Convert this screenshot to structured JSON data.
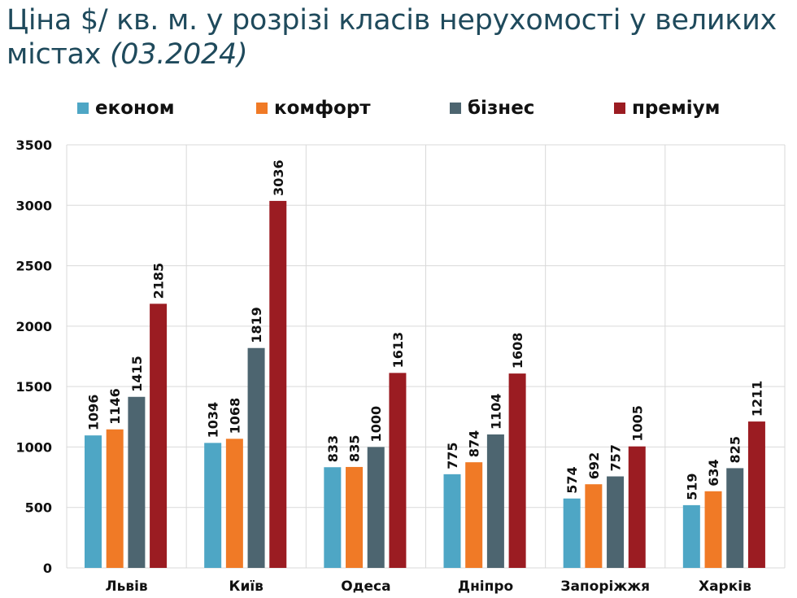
{
  "title": {
    "main": "Ціна $/ кв. м. у розрізі класів нерухомості у великих містах",
    "date": "(03.2024)"
  },
  "chart_data": {
    "type": "bar",
    "title": "Ціна $/ кв. м. у розрізі класів нерухомості у великих містах (03.2024)",
    "xlabel": "",
    "ylabel": "",
    "categories": [
      "Львів",
      "Київ",
      "Одеса",
      "Дніпро",
      "Запоріжжя",
      "Харків"
    ],
    "series": [
      {
        "name": "економ",
        "color": "#4ea6c5",
        "values": [
          1096,
          1034,
          833,
          775,
          574,
          519
        ]
      },
      {
        "name": "комфорт",
        "color": "#f07a26",
        "values": [
          1146,
          1068,
          835,
          874,
          692,
          634
        ]
      },
      {
        "name": "бізнес",
        "color": "#4d6570",
        "values": [
          1415,
          1819,
          1000,
          1104,
          757,
          825
        ]
      },
      {
        "name": "преміум",
        "color": "#9b1c22",
        "values": [
          2185,
          3036,
          1613,
          1608,
          1005,
          1211
        ]
      }
    ],
    "ylim": [
      0,
      3500
    ],
    "yticks": [
      0,
      500,
      1000,
      1500,
      2000,
      2500,
      3000,
      3500
    ],
    "grid": true,
    "legend": "top"
  }
}
